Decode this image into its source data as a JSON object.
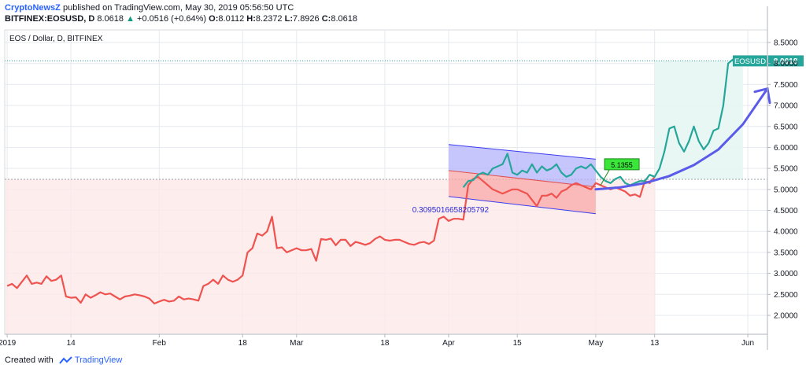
{
  "header": {
    "publisher": "CryptoNewsZ",
    "published_text": "published on TradingView.com, May 30, 2019 05:56:50 UTC",
    "symbol_line": "BITFINEX:EOSUSD, D",
    "last": "8.0618",
    "change": "+0.0516 (+0.64%)",
    "o_label": "O:",
    "o": "8.0112",
    "h_label": "H:",
    "h": "8.2372",
    "l_label": "L:",
    "l": "7.8926",
    "c_label": "C:",
    "c": "8.0618"
  },
  "footer": {
    "created_with": "Created with",
    "brand": "TradingView",
    "logo_icon": "tradingview-logo-icon"
  },
  "colors": {
    "bear_line": "#ef5350",
    "bull_line": "#26a69a",
    "channel_top": "#8c8cf5",
    "channel_bottom": "#f08a8a",
    "arrow": "#5b5bea",
    "price_label_bg": "#26a69a",
    "label_green": "#39e639",
    "axis_text": "#131722",
    "grid": "#e6e9ee"
  },
  "chart_data": {
    "type": "line",
    "title": "EOS / Dollar, D, BITFINEX",
    "symbol_label": "EOSUSD",
    "last_price_label": "8.0618",
    "channel_label": "0.30950166582057​92",
    "target_label": "5.1355",
    "y_ticks": [
      "8.5000",
      "8.0000",
      "7.5000",
      "7.0000",
      "6.5000",
      "6.0000",
      "5.5000",
      "5.0000",
      "4.5000",
      "4.0000",
      "3.5000",
      "3.0000",
      "2.5000",
      "2.0000"
    ],
    "y_tick_values": [
      8.5,
      8.0,
      7.5,
      7.0,
      6.5,
      6.0,
      5.5,
      5.0,
      4.5,
      4.0,
      3.5,
      3.0,
      2.5,
      2.0
    ],
    "ylim": [
      1.55,
      8.8
    ],
    "x_ticks": [
      "2019",
      "14",
      "Feb",
      "18",
      "Mar",
      "18",
      "Apr",
      "15",
      "May",
      "13",
      "Jun"
    ],
    "x_tick_days": [
      0,
      13,
      31,
      48,
      59,
      77,
      90,
      104,
      120,
      132,
      151
    ],
    "xlim": [
      -0.5,
      155
    ],
    "reference_level": 5.24,
    "last_value": 8.0618,
    "series": [
      {
        "role": "bear",
        "x": [
          0,
          1,
          2,
          3,
          4,
          5,
          6,
          7,
          8,
          9,
          10,
          11,
          12,
          13,
          14,
          15,
          16,
          17,
          18,
          19,
          20,
          21,
          22,
          23,
          24,
          25,
          26,
          27,
          28,
          29,
          30,
          31,
          32,
          33,
          34,
          35,
          36,
          37,
          38,
          39,
          40,
          41,
          42,
          43,
          44,
          45,
          46,
          47,
          48,
          49,
          50,
          51,
          52,
          53,
          54,
          55,
          56,
          57,
          58,
          59,
          60,
          61,
          62,
          63,
          64,
          65,
          66,
          67,
          68,
          69,
          70,
          71,
          72,
          73,
          74,
          75,
          76,
          77,
          78,
          79,
          80,
          81,
          82,
          83,
          84,
          85,
          86,
          87,
          88,
          89,
          90,
          91,
          92,
          93,
          94,
          95,
          96,
          97,
          98,
          99,
          100,
          101,
          102,
          103,
          104,
          105,
          106,
          107,
          108,
          109,
          110,
          111,
          112,
          113,
          114,
          115,
          116,
          117,
          118,
          119,
          120,
          121,
          122,
          123,
          124,
          125,
          126,
          127,
          128,
          129,
          130,
          131,
          132
        ],
        "y": [
          2.7,
          2.75,
          2.65,
          2.8,
          2.95,
          2.75,
          2.78,
          2.75,
          2.93,
          2.82,
          2.85,
          2.95,
          2.45,
          2.42,
          2.43,
          2.3,
          2.5,
          2.42,
          2.48,
          2.55,
          2.5,
          2.52,
          2.45,
          2.38,
          2.45,
          2.47,
          2.5,
          2.48,
          2.45,
          2.4,
          2.28,
          2.33,
          2.37,
          2.33,
          2.35,
          2.45,
          2.38,
          2.4,
          2.38,
          2.35,
          2.7,
          2.75,
          2.85,
          2.75,
          2.95,
          2.85,
          2.8,
          2.85,
          2.95,
          3.5,
          3.6,
          3.95,
          3.9,
          4.0,
          4.35,
          3.6,
          3.62,
          3.5,
          3.55,
          3.6,
          3.55,
          3.55,
          3.58,
          3.3,
          3.82,
          3.8,
          3.83,
          3.67,
          3.8,
          3.8,
          3.65,
          3.75,
          3.72,
          3.68,
          3.72,
          3.82,
          3.88,
          3.8,
          3.78,
          3.8,
          3.8,
          3.75,
          3.7,
          3.68,
          3.73,
          3.75,
          3.7,
          3.78,
          4.3,
          4.35,
          4.25,
          4.3,
          4.3,
          4.28,
          5.1,
          5.25,
          5.3,
          5.2,
          5.1,
          5.0,
          4.95,
          4.9,
          4.95,
          5.0,
          5.0,
          4.95,
          4.9,
          4.75,
          4.6,
          4.85,
          4.85,
          4.9,
          4.8,
          4.95,
          5.0,
          5.1,
          5.15,
          5.1,
          5.05,
          5.0,
          5.15,
          5.1,
          5.05,
          5.0,
          5.05,
          5.0,
          4.95,
          4.85,
          4.88,
          4.82,
          5.2,
          5.15,
          5.3
        ]
      },
      {
        "role": "bull",
        "x": [
          93,
          94,
          95,
          96,
          97,
          98,
          99,
          100,
          101,
          102,
          103,
          104,
          105,
          106,
          107,
          108,
          109,
          110,
          111,
          112,
          113,
          114,
          115,
          116,
          117,
          118,
          119,
          120,
          121,
          122,
          123,
          124,
          125,
          126,
          127,
          128,
          129,
          130,
          131,
          132,
          133,
          134,
          135,
          136,
          137,
          138,
          139,
          140,
          141,
          142,
          143,
          144,
          145,
          146,
          147,
          148,
          149,
          150,
          151,
          152
        ],
        "y": [
          5.05,
          5.2,
          5.22,
          5.35,
          5.4,
          5.35,
          5.5,
          5.55,
          5.6,
          5.85,
          5.4,
          5.35,
          5.45,
          5.4,
          5.6,
          5.4,
          5.55,
          5.45,
          5.5,
          5.6,
          5.4,
          5.3,
          5.35,
          5.5,
          5.55,
          5.5,
          5.6,
          5.45,
          5.3,
          5.2,
          5.15,
          5.25,
          5.3,
          5.15,
          5.1,
          5.15,
          5.2,
          5.2,
          5.35,
          5.3,
          5.5,
          5.9,
          6.45,
          6.5,
          6.1,
          5.9,
          6.15,
          6.5,
          6.15,
          5.95,
          6.1,
          6.4,
          6.45,
          7.0,
          8.0,
          8.1,
          8.0,
          8.05,
          8.1,
          8.06
        ]
      }
    ],
    "channel": {
      "x_start": 90,
      "x_end": 120,
      "top_start": 6.07,
      "top_end": 5.72,
      "mid_start": 5.45,
      "mid_end": 5.06,
      "bottom_start": 4.83,
      "bottom_end": 4.42
    },
    "projection_curve": {
      "x": [
        120,
        125,
        130,
        135,
        140,
        145,
        150,
        155
      ],
      "y": [
        5.0,
        5.05,
        5.15,
        5.32,
        5.58,
        5.95,
        6.55,
        7.4
      ]
    }
  }
}
